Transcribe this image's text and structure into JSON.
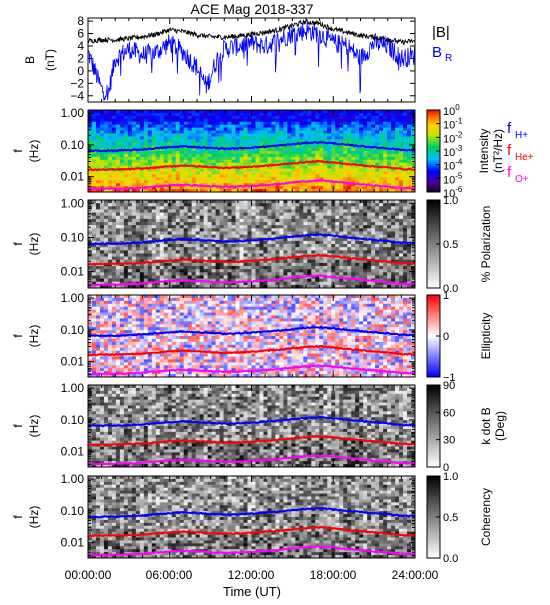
{
  "title": "ACE Mag 2018-337",
  "xlabel": "Time (UT)",
  "x_ticks": [
    "00:00:00",
    "06:00:00",
    "12:00:00",
    "18:00:00",
    "24:00:00"
  ],
  "colors": {
    "B_total": "#000000",
    "B_R": "#0000ff",
    "f_H": "#0000ff",
    "f_He": "#ff0000",
    "f_O": "#ff00ff"
  },
  "line_labels": {
    "fH": {
      "main": "f",
      "sub": "H+"
    },
    "fHe": {
      "main": "f",
      "sub": "He+"
    },
    "fO": {
      "main": "f",
      "sub": "O+"
    }
  },
  "chart_data": [
    {
      "type": "line",
      "panel": "magnetic field",
      "ylabel": "B",
      "yunit": "(nT)",
      "ylim": [
        -5,
        8.5
      ],
      "yticks": [
        -4,
        -2,
        0,
        2,
        4,
        6,
        8
      ],
      "xlim_hours": [
        0,
        24
      ],
      "legend": [
        "|B|",
        "B",
        "R"
      ],
      "series": [
        {
          "name": "|B|",
          "x_hours": [
            0,
            1,
            2,
            3,
            4,
            5,
            6,
            7,
            8,
            9,
            10,
            11,
            12,
            13,
            14,
            15,
            16,
            17,
            18,
            19,
            20,
            21,
            22,
            23,
            24
          ],
          "values": [
            4.8,
            5.0,
            5.0,
            5.2,
            5.5,
            5.9,
            6.6,
            6.3,
            5.8,
            5.5,
            5.4,
            5.6,
            5.9,
            6.2,
            6.6,
            7.3,
            7.9,
            7.6,
            6.7,
            6.2,
            5.7,
            5.4,
            5.1,
            4.6,
            4.8
          ]
        },
        {
          "name": "B_R",
          "x_hours": [
            0,
            0.5,
            1,
            1.5,
            2,
            3,
            4,
            5,
            6,
            7,
            8,
            8.7,
            9.5,
            10,
            11,
            12,
            13,
            14,
            15,
            16,
            17,
            18,
            19,
            20,
            21,
            22,
            23,
            24
          ],
          "values": [
            3.0,
            0.0,
            -3.0,
            -3.5,
            2.0,
            3.5,
            2.5,
            3.0,
            4.5,
            3.0,
            0.5,
            -2.5,
            2.0,
            3.5,
            4.0,
            4.5,
            4.0,
            5.0,
            6.0,
            6.5,
            6.0,
            4.5,
            4.0,
            2.0,
            4.5,
            4.0,
            2.0,
            2.5
          ]
        }
      ]
    },
    {
      "type": "heatmap",
      "panel": "intensity",
      "ylabel": "f",
      "yunit": "(Hz)",
      "yticks": [
        "1.00",
        "0.10",
        "0.01"
      ],
      "colorbar": {
        "label": "Intensity",
        "unit": "(nT²/Hz)",
        "ticks": [
          {
            "b": "10",
            "e": "0"
          },
          {
            "b": "10",
            "e": "-1"
          },
          {
            "b": "10",
            "e": "-2"
          },
          {
            "b": "10",
            "e": "-3"
          },
          {
            "b": "10",
            "e": "-4"
          },
          {
            "b": "10",
            "e": "-5"
          },
          {
            "b": "10",
            "e": "-6"
          }
        ],
        "range": [
          -6,
          0
        ]
      }
    },
    {
      "type": "heatmap",
      "panel": "polarization",
      "ylabel": "f",
      "yunit": "(Hz)",
      "yticks": [
        "1.00",
        "0.10",
        "0.01"
      ],
      "colorbar": {
        "label": "% Polarization",
        "ticks": [
          "1.0",
          "0.5",
          "0.0"
        ],
        "range": [
          0,
          1
        ]
      }
    },
    {
      "type": "heatmap",
      "panel": "ellipticity",
      "ylabel": "f",
      "yunit": "(Hz)",
      "yticks": [
        "1.00",
        "0.10",
        "0.01"
      ],
      "colorbar": {
        "label": "Ellipticity",
        "ticks": [
          "1",
          "0",
          "−1"
        ],
        "range": [
          -1,
          1
        ]
      }
    },
    {
      "type": "heatmap",
      "panel": "wave normal angle",
      "ylabel": "f",
      "yunit": "(Hz)",
      "yticks": [
        "1.00",
        "0.10",
        "0.01"
      ],
      "colorbar": {
        "label": "k dot B",
        "unit": "(Deg)",
        "ticks": [
          "90",
          "60",
          "30",
          "0"
        ],
        "range": [
          0,
          90
        ]
      }
    },
    {
      "type": "heatmap",
      "panel": "coherency",
      "ylabel": "f",
      "yunit": "(Hz)",
      "yticks": [
        "1.00",
        "0.10",
        "0.01"
      ],
      "colorbar": {
        "label": "Coherency",
        "ticks": [
          "1.0",
          "0.5",
          "0.0"
        ],
        "range": [
          0,
          1
        ]
      }
    }
  ],
  "gyrofrequency_lines": {
    "x_hours": [
      0,
      2,
      3,
      4,
      5,
      6,
      7,
      8,
      9,
      10,
      11,
      12,
      13,
      14,
      15,
      16,
      17,
      18,
      19,
      20,
      21,
      22,
      23,
      24
    ],
    "f_H_hz": [
      0.065,
      0.066,
      0.068,
      0.072,
      0.078,
      0.084,
      0.09,
      0.085,
      0.08,
      0.076,
      0.078,
      0.082,
      0.088,
      0.095,
      0.105,
      0.115,
      0.122,
      0.112,
      0.1,
      0.092,
      0.084,
      0.078,
      0.07,
      0.068
    ],
    "f_He_hz": [
      0.0165,
      0.0168,
      0.0172,
      0.018,
      0.0195,
      0.021,
      0.0225,
      0.0212,
      0.02,
      0.019,
      0.0195,
      0.0205,
      0.022,
      0.0238,
      0.0262,
      0.0287,
      0.0305,
      0.028,
      0.025,
      0.023,
      0.021,
      0.0195,
      0.0175,
      0.017
    ],
    "f_O_hz": [
      0.0041,
      0.0042,
      0.0043,
      0.0045,
      0.0049,
      0.0053,
      0.0056,
      0.0053,
      0.005,
      0.0048,
      0.0049,
      0.0051,
      0.0055,
      0.0059,
      0.0066,
      0.0072,
      0.0076,
      0.007,
      0.0063,
      0.0058,
      0.0053,
      0.0049,
      0.0044,
      0.0043
    ]
  }
}
